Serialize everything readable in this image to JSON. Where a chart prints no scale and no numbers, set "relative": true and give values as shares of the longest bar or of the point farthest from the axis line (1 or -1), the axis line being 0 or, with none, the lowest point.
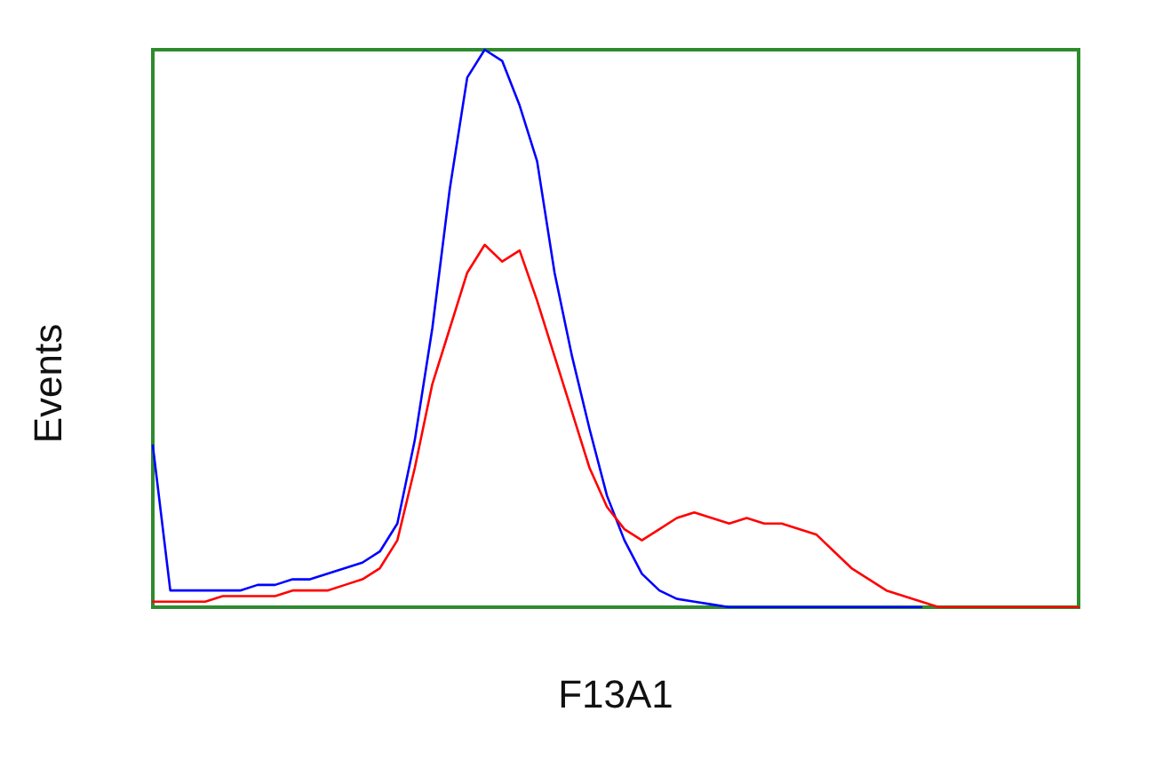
{
  "chart_data": {
    "type": "line",
    "relative": true,
    "xlabel": "F13A1",
    "ylabel": "Events",
    "grid": false,
    "marker": "none",
    "line_style": "solid",
    "categories": [
      null,
      null,
      null,
      null,
      null,
      null,
      null,
      null,
      null,
      null,
      null,
      null,
      null,
      null,
      null,
      null,
      null,
      null,
      null,
      null,
      null,
      null,
      null,
      null,
      null,
      null,
      null,
      null,
      null,
      null,
      null,
      null,
      null,
      null,
      null,
      null,
      null,
      null,
      null,
      null,
      null,
      null,
      null,
      null,
      null,
      null,
      null,
      null,
      null,
      null,
      null,
      null,
      null,
      null
    ],
    "series": [
      {
        "color": "#0000ff",
        "values": [
          0.29,
          0.03,
          0.03,
          0.03,
          0.03,
          0.03,
          0.04,
          0.04,
          0.05,
          0.05,
          0.06,
          0.07,
          0.08,
          0.1,
          0.15,
          0.3,
          0.5,
          0.75,
          0.95,
          1.0,
          0.98,
          0.9,
          0.8,
          0.6,
          0.45,
          0.32,
          0.2,
          0.12,
          0.06,
          0.03,
          0.015,
          0.01,
          0.005,
          0,
          0,
          0,
          0,
          0,
          0,
          0,
          0,
          0,
          0,
          0,
          0,
          null,
          null,
          null,
          null,
          null,
          null,
          null,
          null,
          null
        ]
      },
      {
        "color": "#ff0000",
        "values": [
          0.01,
          0.01,
          0.01,
          0.01,
          0.02,
          0.02,
          0.02,
          0.02,
          0.03,
          0.03,
          0.03,
          0.04,
          0.05,
          0.07,
          0.12,
          0.25,
          0.4,
          0.5,
          0.6,
          0.65,
          0.62,
          0.64,
          0.55,
          0.45,
          0.35,
          0.25,
          0.18,
          0.14,
          0.12,
          0.14,
          0.16,
          0.17,
          0.16,
          0.15,
          0.16,
          0.15,
          0.15,
          0.14,
          0.13,
          0.1,
          0.07,
          0.05,
          0.03,
          0.02,
          0.01,
          0,
          0,
          0,
          0,
          0,
          0,
          0,
          0,
          0
        ]
      }
    ]
  }
}
